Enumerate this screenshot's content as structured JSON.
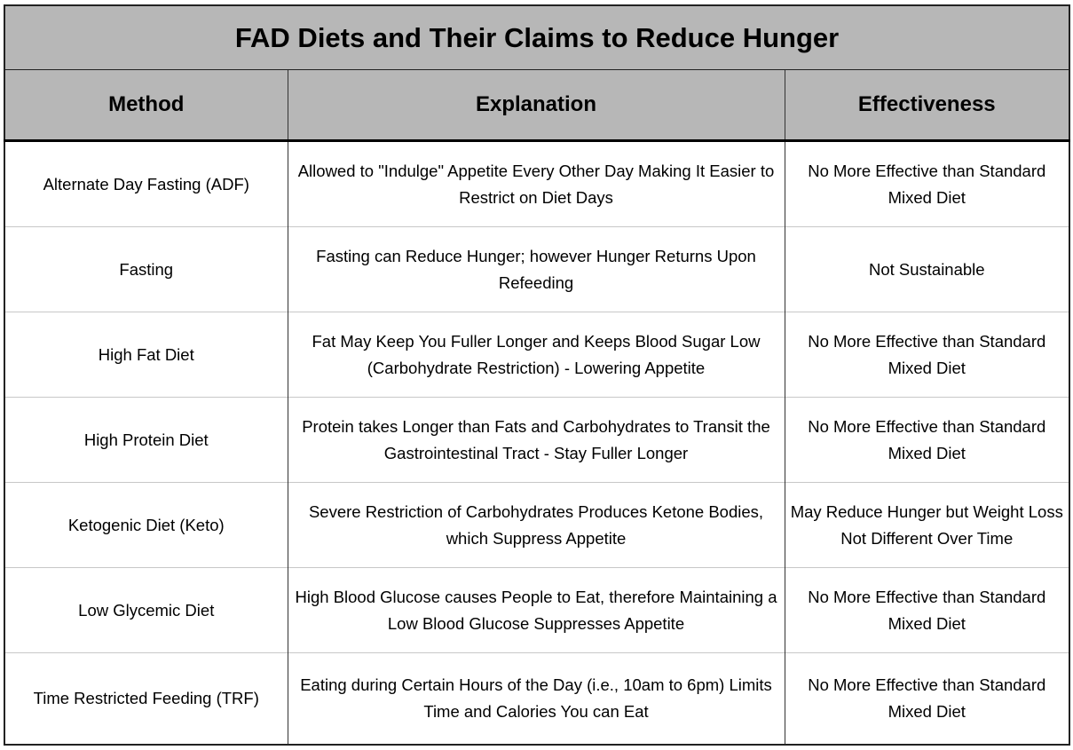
{
  "title": "FAD Diets and Their Claims to Reduce Hunger",
  "headers": [
    "Method",
    "Explanation",
    "Effectiveness"
  ],
  "rows": [
    {
      "method": "Alternate Day Fasting (ADF)",
      "explanation": "Allowed to \"Indulge\" Appetite Every Other Day Making It Easier to Restrict on Diet Days",
      "effectiveness": "No More Effective than Standard Mixed Diet"
    },
    {
      "method": "Fasting",
      "explanation": "Fasting can Reduce Hunger; however Hunger Returns Upon Refeeding",
      "effectiveness": "Not Sustainable"
    },
    {
      "method": "High Fat Diet",
      "explanation": "Fat May Keep You Fuller Longer and Keeps Blood Sugar Low (Carbohydrate Restriction) - Lowering Appetite",
      "effectiveness": "No More Effective than Standard Mixed Diet"
    },
    {
      "method": "High Protein Diet",
      "explanation": "Protein takes Longer than Fats and Carbohydrates to Transit the Gastrointestinal Tract - Stay Fuller Longer",
      "effectiveness": "No More Effective than Standard Mixed Diet"
    },
    {
      "method": "Ketogenic Diet (Keto)",
      "explanation": "Severe Restriction of Carbohydrates Produces Ketone Bodies, which Suppress Appetite",
      "effectiveness": "May Reduce Hunger but Weight Loss Not Different Over Time"
    },
    {
      "method": "Low Glycemic Diet",
      "explanation": "High Blood Glucose causes People to Eat, therefore Maintaining a Low Blood Glucose Suppresses Appetite",
      "effectiveness": "No More Effective than Standard Mixed Diet"
    },
    {
      "method": "Time Restricted Feeding (TRF)",
      "explanation": "Eating during Certain Hours of the Day (i.e., 10am to 6pm) Limits Time and Calories You can Eat",
      "effectiveness": "No More Effective than Standard Mixed Diet"
    }
  ]
}
